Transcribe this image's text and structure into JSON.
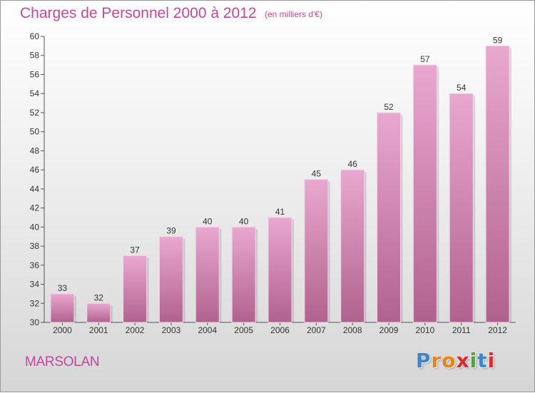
{
  "header": {
    "title": "Charges de Personnel 2000 à 2012",
    "subtitle": "(en milliers d'€)"
  },
  "footer": {
    "city": "MARSOLAN",
    "logo_letters": [
      "P",
      "r",
      "o",
      "x",
      "i",
      "t",
      "i"
    ]
  },
  "colors": {
    "title": "#c0479a",
    "bar_top": "#e9a8d0",
    "bar_bottom": "#b0628e",
    "bar_edge": "#f3d2e6",
    "logo": [
      "#3f86c8",
      "#e8841c",
      "#e8841c",
      "#d62d2d",
      "#4aa832",
      "#3f86c8",
      "#d62d2d"
    ]
  },
  "chart_data": {
    "type": "bar",
    "title": "Charges de Personnel 2000 à 2012",
    "subtitle": "(en milliers d'€)",
    "xlabel": "",
    "ylabel": "",
    "categories": [
      "2000",
      "2001",
      "2002",
      "2003",
      "2004",
      "2005",
      "2006",
      "2007",
      "2008",
      "2009",
      "2010",
      "2011",
      "2012"
    ],
    "values": [
      33,
      32,
      37,
      39,
      40,
      40,
      41,
      45,
      46,
      52,
      57,
      54,
      59
    ],
    "ylim": [
      30,
      60
    ],
    "yticks": [
      30,
      32,
      34,
      36,
      38,
      40,
      42,
      44,
      46,
      48,
      50,
      52,
      54,
      56,
      58,
      60
    ],
    "grid": false,
    "data_labels": true
  }
}
